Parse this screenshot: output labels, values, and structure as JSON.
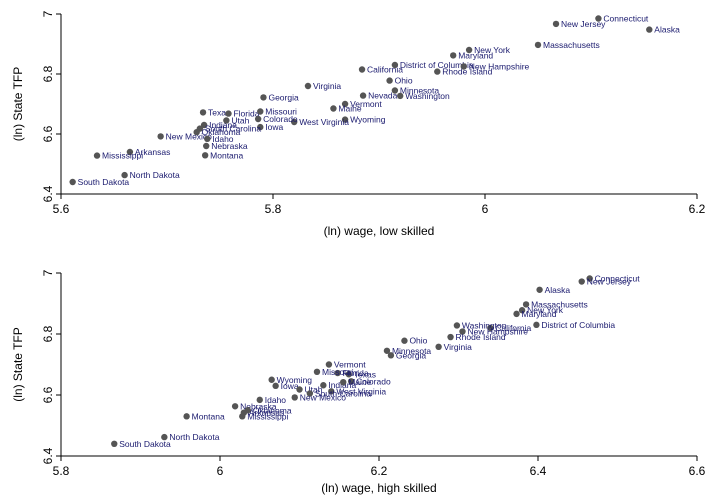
{
  "chart_data": [
    {
      "type": "scatter",
      "xlabel": "(ln) wage, low skilled",
      "ylabel": "(ln) State TFP",
      "xlim": [
        5.6,
        6.2
      ],
      "ylim": [
        6.4,
        7.0
      ],
      "xticks": [
        "5.6",
        "5.8",
        "6",
        "6.2"
      ],
      "yticks": [
        "6.4",
        "6.6",
        "6.8",
        "7"
      ],
      "point_color": "#555555",
      "label_color": "#1a1a6e",
      "points": [
        {
          "label": "Connecticut",
          "x": 6.107,
          "y": 6.985
        },
        {
          "label": "New Jersey",
          "x": 6.067,
          "y": 6.967
        },
        {
          "label": "Alaska",
          "x": 6.155,
          "y": 6.948
        },
        {
          "label": "Massachusetts",
          "x": 6.05,
          "y": 6.897
        },
        {
          "label": "New York",
          "x": 5.985,
          "y": 6.88
        },
        {
          "label": "Maryland",
          "x": 5.97,
          "y": 6.862
        },
        {
          "label": "District of Columbia",
          "x": 5.915,
          "y": 6.83
        },
        {
          "label": "New Hampshire",
          "x": 5.98,
          "y": 6.825
        },
        {
          "label": "California",
          "x": 5.884,
          "y": 6.815
        },
        {
          "label": "Rhode Island",
          "x": 5.955,
          "y": 6.808
        },
        {
          "label": "Ohio",
          "x": 5.91,
          "y": 6.778
        },
        {
          "label": "Minnesota",
          "x": 5.915,
          "y": 6.745
        },
        {
          "label": "Washington",
          "x": 5.92,
          "y": 6.727
        },
        {
          "label": "Virginia",
          "x": 5.833,
          "y": 6.76
        },
        {
          "label": "Georgia",
          "x": 5.791,
          "y": 6.722
        },
        {
          "label": "Nevada",
          "x": 5.885,
          "y": 6.728
        },
        {
          "label": "Vermont",
          "x": 5.868,
          "y": 6.7
        },
        {
          "label": "Maine",
          "x": 5.857,
          "y": 6.685
        },
        {
          "label": "Texas",
          "x": 5.734,
          "y": 6.672
        },
        {
          "label": "Florida",
          "x": 5.758,
          "y": 6.668
        },
        {
          "label": "Missouri",
          "x": 5.788,
          "y": 6.675
        },
        {
          "label": "Wyoming",
          "x": 5.868,
          "y": 6.648
        },
        {
          "label": "West Virginia",
          "x": 5.82,
          "y": 6.64
        },
        {
          "label": "Colorado",
          "x": 5.786,
          "y": 6.65
        },
        {
          "label": "Iowa",
          "x": 5.788,
          "y": 6.623
        },
        {
          "label": "Utah",
          "x": 5.756,
          "y": 6.645
        },
        {
          "label": "Indiana",
          "x": 5.735,
          "y": 6.63
        },
        {
          "label": "South Carolina",
          "x": 5.731,
          "y": 6.618
        },
        {
          "label": "Oklahoma",
          "x": 5.728,
          "y": 6.606
        },
        {
          "label": "New Mexico",
          "x": 5.694,
          "y": 6.592
        },
        {
          "label": "Idaho",
          "x": 5.738,
          "y": 6.584
        },
        {
          "label": "Nebraska",
          "x": 5.737,
          "y": 6.56
        },
        {
          "label": "Montana",
          "x": 5.736,
          "y": 6.529
        },
        {
          "label": "Arkansas",
          "x": 5.665,
          "y": 6.54
        },
        {
          "label": "Mississippi",
          "x": 5.634,
          "y": 6.528
        },
        {
          "label": "North Dakota",
          "x": 5.66,
          "y": 6.463
        },
        {
          "label": "South Dakota",
          "x": 5.611,
          "y": 6.44
        }
      ]
    },
    {
      "type": "scatter",
      "xlabel": "(ln) wage, high skilled",
      "ylabel": "(ln) State TFP",
      "xlim": [
        5.8,
        6.6
      ],
      "ylim": [
        6.4,
        7.0
      ],
      "xticks": [
        "5.8",
        "6",
        "6.2",
        "6.4",
        "6.6"
      ],
      "yticks": [
        "6.4",
        "6.6",
        "6.8",
        "7"
      ],
      "point_color": "#555555",
      "label_color": "#1a1a6e",
      "points": [
        {
          "label": "Connecticut",
          "x": 6.465,
          "y": 6.982
        },
        {
          "label": "New Jersey",
          "x": 6.455,
          "y": 6.972
        },
        {
          "label": "Alaska",
          "x": 6.402,
          "y": 6.945
        },
        {
          "label": "Massachusetts",
          "x": 6.385,
          "y": 6.897
        },
        {
          "label": "New York",
          "x": 6.38,
          "y": 6.878
        },
        {
          "label": "Maryland",
          "x": 6.373,
          "y": 6.866
        },
        {
          "label": "District of Columbia",
          "x": 6.398,
          "y": 6.83
        },
        {
          "label": "California",
          "x": 6.34,
          "y": 6.82
        },
        {
          "label": "Washington",
          "x": 6.298,
          "y": 6.828
        },
        {
          "label": "New Hampshire",
          "x": 6.305,
          "y": 6.808
        },
        {
          "label": "Rhode Island",
          "x": 6.29,
          "y": 6.79
        },
        {
          "label": "Ohio",
          "x": 6.232,
          "y": 6.778
        },
        {
          "label": "Virginia",
          "x": 6.275,
          "y": 6.758
        },
        {
          "label": "Minnesota",
          "x": 6.21,
          "y": 6.745
        },
        {
          "label": "Georgia",
          "x": 6.215,
          "y": 6.73
        },
        {
          "label": "Vermont",
          "x": 6.137,
          "y": 6.7
        },
        {
          "label": "Texas",
          "x": 6.162,
          "y": 6.668
        },
        {
          "label": "Florida",
          "x": 6.148,
          "y": 6.672
        },
        {
          "label": "Missouri",
          "x": 6.122,
          "y": 6.676
        },
        {
          "label": "Colorado",
          "x": 6.165,
          "y": 6.645
        },
        {
          "label": "Wyoming",
          "x": 6.065,
          "y": 6.65
        },
        {
          "label": "Iowa",
          "x": 6.07,
          "y": 6.63
        },
        {
          "label": "Indiana",
          "x": 6.13,
          "y": 6.632
        },
        {
          "label": "Maine",
          "x": 6.155,
          "y": 6.642
        },
        {
          "label": "Utah",
          "x": 6.1,
          "y": 6.618
        },
        {
          "label": "West Virginia",
          "x": 6.14,
          "y": 6.612
        },
        {
          "label": "South Carolina",
          "x": 6.113,
          "y": 6.605
        },
        {
          "label": "New Mexico",
          "x": 6.094,
          "y": 6.592
        },
        {
          "label": "Idaho",
          "x": 6.05,
          "y": 6.584
        },
        {
          "label": "Nebraska",
          "x": 6.019,
          "y": 6.563
        },
        {
          "label": "Oklahoma",
          "x": 6.035,
          "y": 6.55
        },
        {
          "label": "Arkansas",
          "x": 6.03,
          "y": 6.542
        },
        {
          "label": "Mississippi",
          "x": 6.028,
          "y": 6.53
        },
        {
          "label": "Montana",
          "x": 5.958,
          "y": 6.53
        },
        {
          "label": "North Dakota",
          "x": 5.93,
          "y": 6.462
        },
        {
          "label": "South Dakota",
          "x": 5.867,
          "y": 6.44
        }
      ]
    }
  ]
}
